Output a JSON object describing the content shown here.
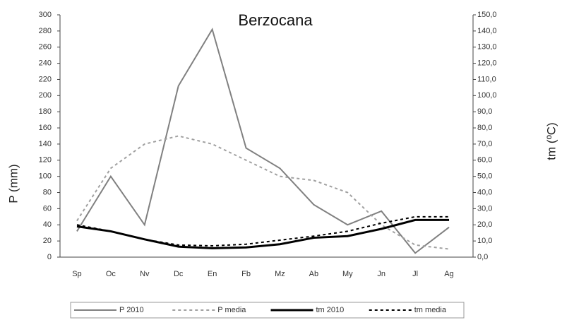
{
  "chart_data": {
    "type": "line",
    "title": "Berzocana",
    "ylabel": "P (mm)",
    "y2label": "tm (ºC)",
    "categories": [
      "Sp",
      "Oc",
      "Nv",
      "Dc",
      "En",
      "Fb",
      "Mz",
      "Ab",
      "My",
      "Jn",
      "Jl",
      "Ag"
    ],
    "ylim": [
      0,
      300
    ],
    "yticks": [
      0,
      20,
      40,
      60,
      80,
      100,
      120,
      140,
      160,
      180,
      200,
      220,
      240,
      260,
      280,
      300
    ],
    "y2lim": [
      0,
      150
    ],
    "y2ticks": [
      {
        "value": 0,
        "label": "0,0"
      },
      {
        "value": 10,
        "label": "10,0"
      },
      {
        "value": 20,
        "label": "20,0"
      },
      {
        "value": 30,
        "label": "30,0"
      },
      {
        "value": 40,
        "label": "40,0"
      },
      {
        "value": 50,
        "label": "50,0"
      },
      {
        "value": 60,
        "label": "60,0"
      },
      {
        "value": 70,
        "label": "70,0"
      },
      {
        "value": 80,
        "label": "80,0"
      },
      {
        "value": 90,
        "label": "90,0"
      },
      {
        "value": 100,
        "label": "100,0"
      },
      {
        "value": 110,
        "label": "110,0"
      },
      {
        "value": 120,
        "label": "120,0"
      },
      {
        "value": 130,
        "label": "130,0"
      },
      {
        "value": 140,
        "label": "140,0"
      },
      {
        "value": 150,
        "label": "150,0"
      }
    ],
    "legend": "bottom",
    "series": [
      {
        "name": "P 2010",
        "color": "#808080",
        "dashed": false,
        "values": [
          32,
          100,
          40,
          212,
          282,
          135,
          110,
          65,
          40,
          57,
          5,
          37
        ]
      },
      {
        "name": "P media",
        "color": "#a0a0a0",
        "dashed": true,
        "values": [
          45,
          110,
          140,
          150,
          140,
          120,
          100,
          95,
          80,
          40,
          15,
          10
        ]
      },
      {
        "name": "tm 2010",
        "color": "#000000",
        "dashed": false,
        "axis": "y2",
        "values": [
          19,
          16,
          11,
          6.5,
          5.5,
          6,
          8,
          12,
          13,
          17.5,
          23,
          23
        ]
      },
      {
        "name": "tm media",
        "color": "#000000",
        "dashed": true,
        "axis": "y2",
        "values": [
          20,
          16,
          11,
          7.5,
          7,
          8,
          10.5,
          13,
          16,
          21,
          25,
          25
        ]
      }
    ]
  }
}
